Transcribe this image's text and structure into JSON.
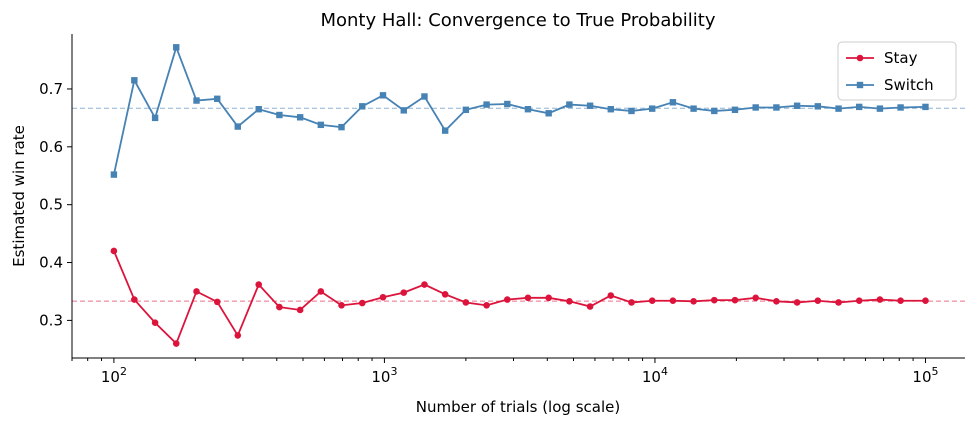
{
  "chart_data": {
    "type": "line",
    "title": "Monty Hall: Convergence to True Probability",
    "xlabel": "Number of trials (log scale)",
    "ylabel": "Estimated win rate",
    "xscale": "log",
    "xlim": [
      70,
      140000
    ],
    "ylim": [
      0.235,
      0.795
    ],
    "yticks": [
      0.3,
      0.4,
      0.5,
      0.6,
      0.7
    ],
    "ytick_labels": [
      "0.3",
      "0.4",
      "0.5",
      "0.6",
      "0.7"
    ],
    "xticks": [
      {
        "base": "10",
        "exp": "2",
        "value": 100
      },
      {
        "base": "10",
        "exp": "3",
        "value": 1000
      },
      {
        "base": "10",
        "exp": "4",
        "value": 10000
      },
      {
        "base": "10",
        "exp": "5",
        "value": 100000
      }
    ],
    "x": [
      100,
      119,
      142,
      170,
      202,
      241,
      287,
      343,
      409,
      488,
      582,
      694,
      828,
      988,
      1179,
      1406,
      1677,
      2000,
      2386,
      2846,
      3393,
      4047,
      4828,
      5758,
      6867,
      8190,
      9770,
      11652,
      13895,
      16570,
      19763,
      23570,
      28117,
      33535,
      40000,
      47718,
      56898,
      67860,
      80926,
      100000
    ],
    "series": [
      {
        "name": "Stay",
        "color": "#dc143c",
        "marker": "circle",
        "values": [
          0.42,
          0.336,
          0.296,
          0.26,
          0.35,
          0.332,
          0.274,
          0.362,
          0.323,
          0.318,
          0.35,
          0.326,
          0.33,
          0.34,
          0.348,
          0.362,
          0.345,
          0.331,
          0.326,
          0.336,
          0.339,
          0.339,
          0.333,
          0.324,
          0.343,
          0.331,
          0.334,
          0.334,
          0.333,
          0.335,
          0.335,
          0.339,
          0.333,
          0.331,
          0.334,
          0.331,
          0.334,
          0.336,
          0.334,
          0.334
        ]
      },
      {
        "name": "Switch",
        "color": "#4682b4",
        "marker": "square",
        "values": [
          0.552,
          0.715,
          0.65,
          0.772,
          0.68,
          0.683,
          0.635,
          0.665,
          0.655,
          0.651,
          0.638,
          0.634,
          0.67,
          0.689,
          0.663,
          0.687,
          0.628,
          0.664,
          0.673,
          0.674,
          0.665,
          0.658,
          0.673,
          0.671,
          0.665,
          0.662,
          0.666,
          0.677,
          0.666,
          0.662,
          0.664,
          0.668,
          0.668,
          0.671,
          0.67,
          0.666,
          0.669,
          0.666,
          0.668,
          0.669
        ]
      }
    ],
    "reference_lines": [
      {
        "y": 0.3333,
        "color": "#dc143c",
        "style": "dashed"
      },
      {
        "y": 0.6667,
        "color": "#4682b4",
        "style": "dashed"
      }
    ],
    "legend_position": "top-right",
    "grid": false
  }
}
